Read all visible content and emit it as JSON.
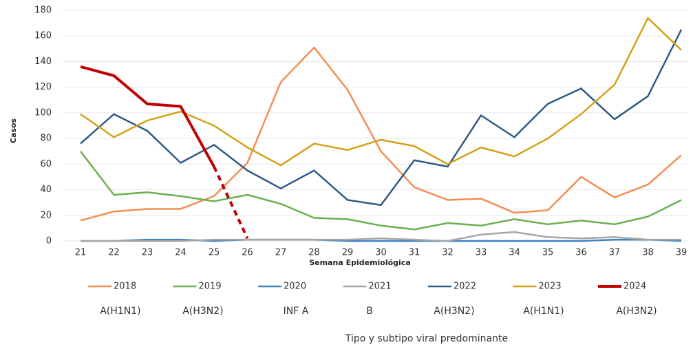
{
  "chart_data": {
    "type": "line",
    "x_label": "Semana Epidemiológica",
    "y_label": "Casos",
    "categories": [
      "21",
      "22",
      "23",
      "24",
      "25",
      "26",
      "27",
      "28",
      "29",
      "30",
      "31",
      "32",
      "33",
      "34",
      "35",
      "36",
      "37",
      "38",
      "39"
    ],
    "ylim": [
      0,
      180
    ],
    "yticks": [
      0,
      20,
      40,
      60,
      80,
      100,
      120,
      140,
      160,
      180
    ],
    "grid": true,
    "series": [
      {
        "name": "2018",
        "color": "#f28e54",
        "values": [
          16,
          23,
          25,
          25,
          35,
          61,
          124,
          151,
          118,
          70,
          42,
          32,
          33,
          22,
          24,
          50,
          34,
          44,
          67
        ]
      },
      {
        "name": "2019",
        "color": "#6ab04c",
        "values": [
          70,
          36,
          38,
          35,
          31,
          36,
          29,
          18,
          17,
          12,
          9,
          14,
          12,
          17,
          13,
          16,
          13,
          19,
          32
        ]
      },
      {
        "name": "2020",
        "color": "#3b82c4",
        "values": [
          0,
          0,
          1,
          1,
          0,
          1,
          1,
          1,
          0,
          0,
          0,
          0,
          0,
          0,
          0,
          0,
          1,
          1,
          0
        ]
      },
      {
        "name": "2021",
        "color": "#a6a6a6",
        "values": [
          0,
          0,
          0,
          0,
          1,
          1,
          1,
          1,
          1,
          2,
          1,
          0,
          5,
          7,
          3,
          2,
          3,
          1,
          1
        ]
      },
      {
        "name": "2022",
        "color": "#2e5a87",
        "values": [
          76,
          99,
          86,
          61,
          75,
          55,
          41,
          55,
          32,
          28,
          63,
          58,
          98,
          81,
          107,
          119,
          95,
          113,
          165
        ]
      },
      {
        "name": "2023",
        "color": "#d4a017",
        "values": [
          99,
          81,
          94,
          101,
          90,
          73,
          59,
          76,
          71,
          79,
          74,
          60,
          73,
          66,
          80,
          99,
          122,
          174,
          149
        ]
      },
      {
        "name": "2024",
        "color": "#c00000",
        "bold": true,
        "dashed_from": "25",
        "values": [
          136,
          129,
          107,
          105,
          58,
          2,
          null,
          null,
          null,
          null,
          null,
          null,
          null,
          null,
          null,
          null,
          null,
          null,
          null
        ]
      }
    ],
    "subtypes_title": "Tipo y subtipo viral predominante",
    "subtypes": [
      "A(H1N1)",
      "A(H3N2)",
      "INF A",
      "B",
      "A(H3N2)",
      "A(H1N1)",
      "A(H3N2)"
    ]
  }
}
